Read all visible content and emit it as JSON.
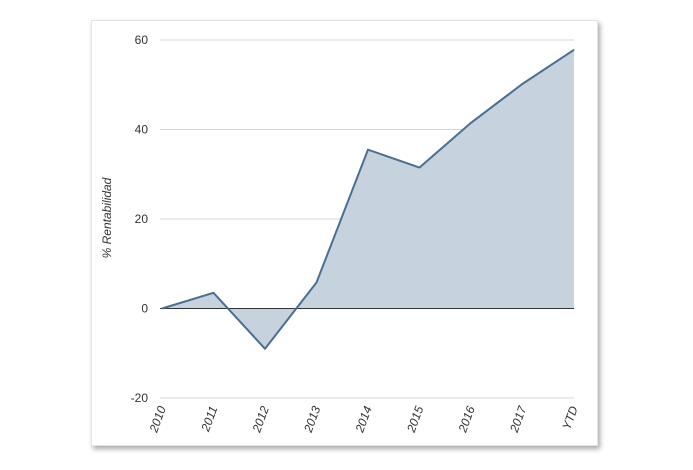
{
  "chart_data": {
    "type": "area",
    "title": "",
    "xlabel": "",
    "ylabel": "% Rentabilidad",
    "categories": [
      "2010",
      "2011",
      "2012",
      "2013",
      "2014",
      "2015",
      "2016",
      "2017",
      "YTD"
    ],
    "series": [
      {
        "values": [
          0,
          3.5,
          -9,
          5.8,
          35.5,
          31.5,
          41.5,
          50.2,
          57.8
        ]
      }
    ],
    "ylim": [
      -20,
      60
    ],
    "yticks": [
      "-20",
      "0",
      "20",
      "40",
      "60"
    ],
    "grid": true,
    "legend": "none",
    "colors": {
      "line": "#4a6f92",
      "fill": "#c6d3df",
      "grid": "#d7d7d7",
      "zero_line": "#333333"
    }
  }
}
